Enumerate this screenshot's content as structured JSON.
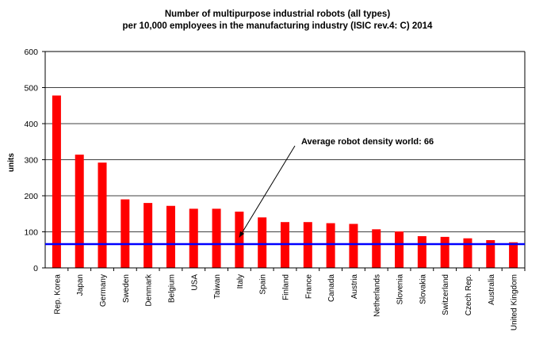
{
  "chart_data": {
    "type": "bar",
    "title_lines": [
      "Number of multipurpose industrial robots (all types)",
      "per 10,000 employees in the manufacturing industry (ISIC rev.4: C) 2014"
    ],
    "ylabel": "units",
    "xlabel": "",
    "ylim": [
      0,
      600
    ],
    "yticks": [
      0,
      100,
      200,
      300,
      400,
      500,
      600
    ],
    "grid": true,
    "bar_color": "#ff0000",
    "reference_line": {
      "value": 66,
      "color": "#0000ff"
    },
    "annotation": "Average robot density world: 66",
    "categories": [
      "Rep. Korea",
      "Japan",
      "Germany",
      "Sweden",
      "Denmark",
      "Belgium",
      "USA",
      "Taiwan",
      "Italy",
      "Spain",
      "Finland",
      "France",
      "Canada",
      "Austria",
      "Netherlands",
      "Slovenia",
      "Slovakia",
      "Switzerland",
      "Czech Rep.",
      "Australia",
      "United Kingdom"
    ],
    "values": [
      478,
      314,
      292,
      190,
      180,
      172,
      164,
      164,
      156,
      140,
      127,
      127,
      124,
      122,
      107,
      101,
      88,
      86,
      82,
      77,
      71
    ]
  }
}
